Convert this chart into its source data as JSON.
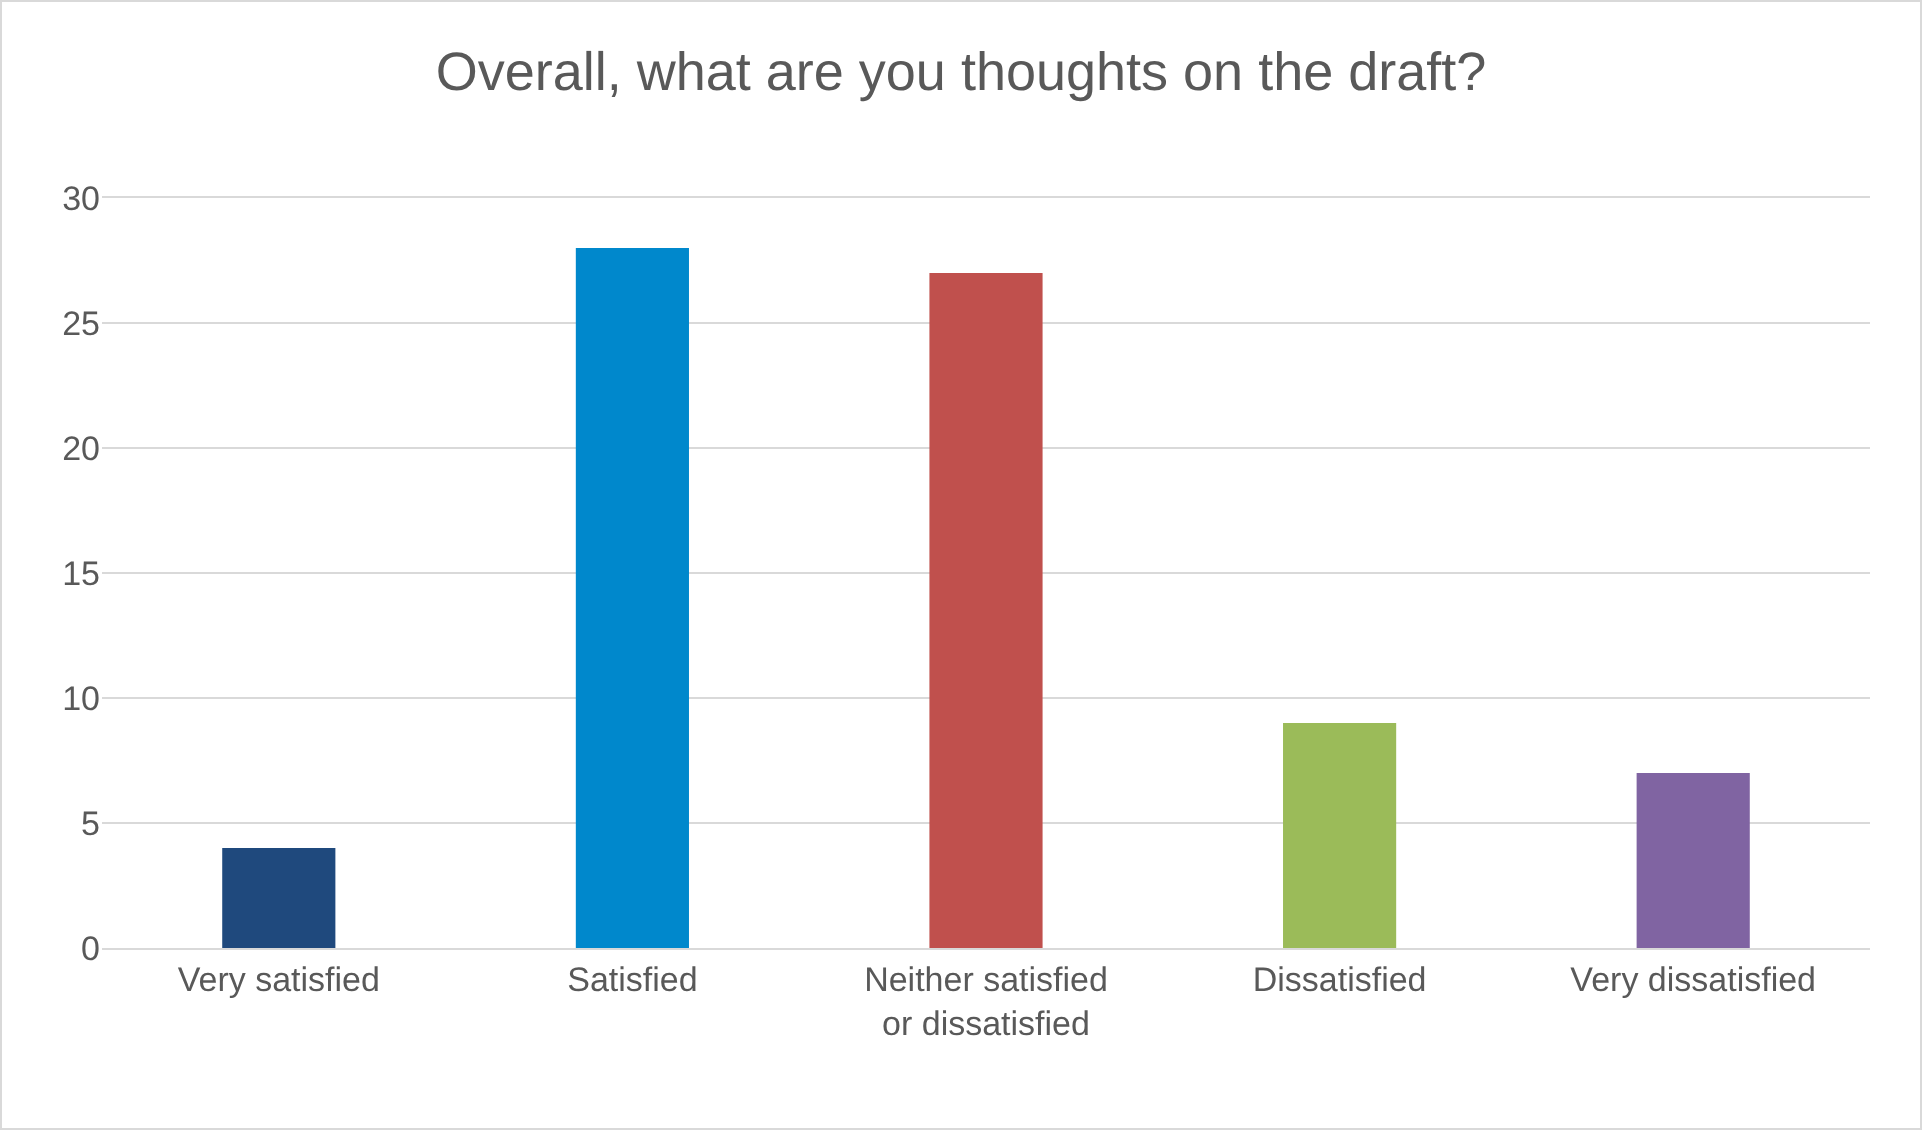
{
  "chart_data": {
    "type": "bar",
    "title": "Overall, what are you thoughts on the draft?",
    "categories": [
      "Very satisfied",
      "Satisfied",
      "Neither satisfied or dissatisfied",
      "Dissatisfied",
      "Very dissatisfied"
    ],
    "values": [
      4,
      28,
      27,
      9,
      7
    ],
    "colors": [
      "#1f497d",
      "#0088cc",
      "#c0504d",
      "#9bbb59",
      "#8064a2"
    ],
    "ylim": [
      0,
      30
    ],
    "yticks": [
      0,
      5,
      10,
      15,
      20,
      25,
      30
    ],
    "grid": "y"
  }
}
